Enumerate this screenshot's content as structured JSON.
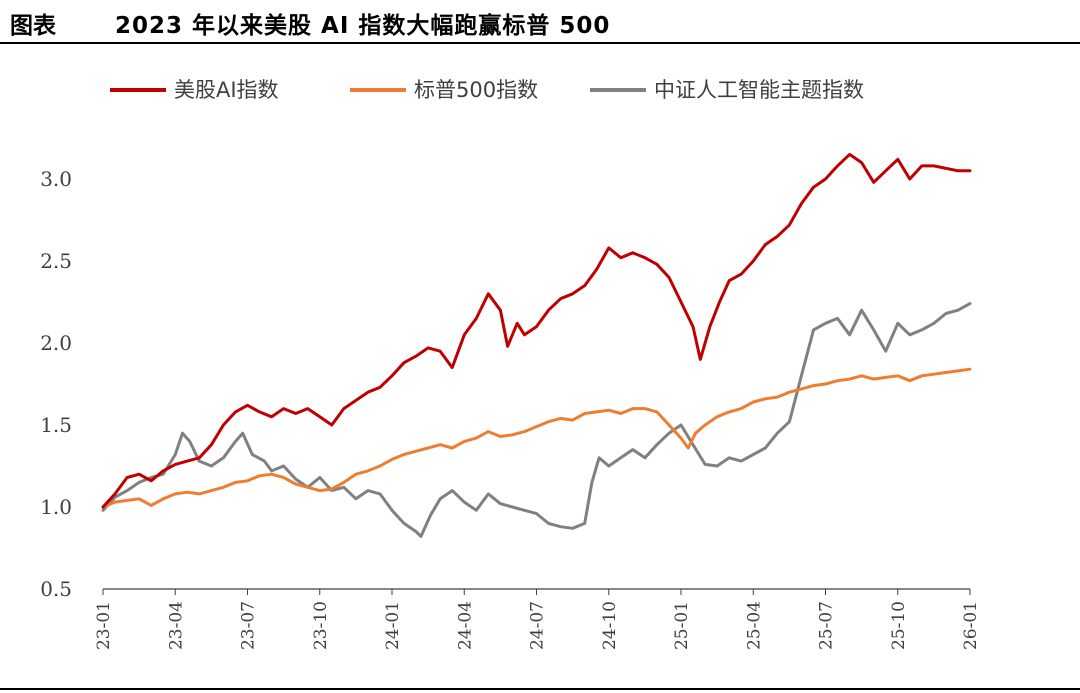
{
  "header": {
    "figure_label": "图表",
    "title": "2023 年以来美股 AI 指数大幅跑赢标普 500"
  },
  "chart_data": {
    "type": "line",
    "title": "2023 年以来美股 AI 指数大幅跑赢标普 500",
    "xlabel": "",
    "ylabel": "",
    "ylim": [
      0.5,
      3.3
    ],
    "yticks": [
      "0.5",
      "1.0",
      "1.5",
      "2.0",
      "2.5",
      "3.0"
    ],
    "xticks": [
      "23-01",
      "23-04",
      "23-07",
      "23-10",
      "24-01",
      "24-04",
      "24-07",
      "24-10",
      "25-01",
      "25-04",
      "25-07",
      "25-10",
      "26-01"
    ],
    "xrange": [
      0,
      36
    ],
    "legend_position": "top",
    "series": [
      {
        "name": "美股AI指数",
        "color": "#C00000",
        "points": [
          [
            0,
            1.0
          ],
          [
            0.5,
            1.08
          ],
          [
            1,
            1.18
          ],
          [
            1.5,
            1.2
          ],
          [
            2,
            1.16
          ],
          [
            2.5,
            1.22
          ],
          [
            3,
            1.26
          ],
          [
            3.5,
            1.28
          ],
          [
            4,
            1.3
          ],
          [
            4.5,
            1.38
          ],
          [
            5,
            1.5
          ],
          [
            5.5,
            1.58
          ],
          [
            6,
            1.62
          ],
          [
            6.5,
            1.58
          ],
          [
            7,
            1.55
          ],
          [
            7.5,
            1.6
          ],
          [
            8,
            1.57
          ],
          [
            8.5,
            1.6
          ],
          [
            9,
            1.55
          ],
          [
            9.5,
            1.5
          ],
          [
            10,
            1.6
          ],
          [
            10.5,
            1.65
          ],
          [
            11,
            1.7
          ],
          [
            11.5,
            1.73
          ],
          [
            12,
            1.8
          ],
          [
            12.5,
            1.88
          ],
          [
            13,
            1.92
          ],
          [
            13.5,
            1.97
          ],
          [
            14,
            1.95
          ],
          [
            14.5,
            1.85
          ],
          [
            15,
            2.05
          ],
          [
            15.5,
            2.15
          ],
          [
            16,
            2.3
          ],
          [
            16.5,
            2.2
          ],
          [
            16.8,
            1.98
          ],
          [
            17.2,
            2.12
          ],
          [
            17.5,
            2.05
          ],
          [
            18,
            2.1
          ],
          [
            18.5,
            2.2
          ],
          [
            19,
            2.27
          ],
          [
            19.5,
            2.3
          ],
          [
            20,
            2.35
          ],
          [
            20.5,
            2.45
          ],
          [
            21,
            2.58
          ],
          [
            21.5,
            2.52
          ],
          [
            22,
            2.55
          ],
          [
            22.5,
            2.52
          ],
          [
            23,
            2.48
          ],
          [
            23.5,
            2.4
          ],
          [
            24,
            2.25
          ],
          [
            24.5,
            2.1
          ],
          [
            24.8,
            1.9
          ],
          [
            25.2,
            2.1
          ],
          [
            25.6,
            2.25
          ],
          [
            26,
            2.38
          ],
          [
            26.5,
            2.42
          ],
          [
            27,
            2.5
          ],
          [
            27.5,
            2.6
          ],
          [
            28,
            2.65
          ],
          [
            28.5,
            2.72
          ],
          [
            29,
            2.85
          ],
          [
            29.5,
            2.95
          ],
          [
            30,
            3.0
          ],
          [
            30.5,
            3.08
          ],
          [
            31,
            3.15
          ],
          [
            31.5,
            3.1
          ],
          [
            32,
            2.98
          ],
          [
            32.5,
            3.05
          ],
          [
            33,
            3.12
          ],
          [
            33.5,
            3.0
          ],
          [
            34,
            3.08
          ],
          [
            34.5,
            3.08
          ],
          [
            35.5,
            3.05
          ],
          [
            36,
            3.05
          ]
        ]
      },
      {
        "name": "标普500指数",
        "color": "#ED7D31",
        "points": [
          [
            0,
            1.0
          ],
          [
            0.5,
            1.03
          ],
          [
            1,
            1.04
          ],
          [
            1.5,
            1.05
          ],
          [
            2,
            1.01
          ],
          [
            2.5,
            1.05
          ],
          [
            3,
            1.08
          ],
          [
            3.5,
            1.09
          ],
          [
            4,
            1.08
          ],
          [
            4.5,
            1.1
          ],
          [
            5,
            1.12
          ],
          [
            5.5,
            1.15
          ],
          [
            6,
            1.16
          ],
          [
            6.5,
            1.19
          ],
          [
            7,
            1.2
          ],
          [
            7.5,
            1.18
          ],
          [
            8,
            1.14
          ],
          [
            8.5,
            1.12
          ],
          [
            9,
            1.1
          ],
          [
            9.5,
            1.11
          ],
          [
            10,
            1.15
          ],
          [
            10.5,
            1.2
          ],
          [
            11,
            1.22
          ],
          [
            11.5,
            1.25
          ],
          [
            12,
            1.29
          ],
          [
            12.5,
            1.32
          ],
          [
            13,
            1.34
          ],
          [
            13.5,
            1.36
          ],
          [
            14,
            1.38
          ],
          [
            14.5,
            1.36
          ],
          [
            15,
            1.4
          ],
          [
            15.5,
            1.42
          ],
          [
            16,
            1.46
          ],
          [
            16.5,
            1.43
          ],
          [
            17,
            1.44
          ],
          [
            17.5,
            1.46
          ],
          [
            18,
            1.49
          ],
          [
            18.5,
            1.52
          ],
          [
            19,
            1.54
          ],
          [
            19.5,
            1.53
          ],
          [
            20,
            1.57
          ],
          [
            20.5,
            1.58
          ],
          [
            21,
            1.59
          ],
          [
            21.5,
            1.57
          ],
          [
            22,
            1.6
          ],
          [
            22.5,
            1.6
          ],
          [
            23,
            1.58
          ],
          [
            23.5,
            1.5
          ],
          [
            24,
            1.42
          ],
          [
            24.3,
            1.36
          ],
          [
            24.6,
            1.45
          ],
          [
            25,
            1.5
          ],
          [
            25.5,
            1.55
          ],
          [
            26,
            1.58
          ],
          [
            26.5,
            1.6
          ],
          [
            27,
            1.64
          ],
          [
            27.5,
            1.66
          ],
          [
            28,
            1.67
          ],
          [
            28.5,
            1.7
          ],
          [
            29,
            1.72
          ],
          [
            29.5,
            1.74
          ],
          [
            30,
            1.75
          ],
          [
            30.5,
            1.77
          ],
          [
            31,
            1.78
          ],
          [
            31.5,
            1.8
          ],
          [
            32,
            1.78
          ],
          [
            32.5,
            1.79
          ],
          [
            33,
            1.8
          ],
          [
            33.5,
            1.77
          ],
          [
            34,
            1.8
          ],
          [
            34.5,
            1.81
          ],
          [
            35,
            1.82
          ],
          [
            35.5,
            1.83
          ],
          [
            36,
            1.84
          ]
        ]
      },
      {
        "name": "中证人工智能主题指数",
        "color": "#808080",
        "points": [
          [
            0,
            0.98
          ],
          [
            0.5,
            1.06
          ],
          [
            1,
            1.1
          ],
          [
            1.5,
            1.15
          ],
          [
            2,
            1.18
          ],
          [
            2.5,
            1.2
          ],
          [
            3,
            1.32
          ],
          [
            3.3,
            1.45
          ],
          [
            3.6,
            1.4
          ],
          [
            4,
            1.28
          ],
          [
            4.5,
            1.25
          ],
          [
            5,
            1.3
          ],
          [
            5.5,
            1.4
          ],
          [
            5.8,
            1.45
          ],
          [
            6.2,
            1.32
          ],
          [
            6.7,
            1.28
          ],
          [
            7,
            1.22
          ],
          [
            7.5,
            1.25
          ],
          [
            8,
            1.17
          ],
          [
            8.5,
            1.12
          ],
          [
            9,
            1.18
          ],
          [
            9.5,
            1.1
          ],
          [
            10,
            1.12
          ],
          [
            10.5,
            1.05
          ],
          [
            11,
            1.1
          ],
          [
            11.5,
            1.08
          ],
          [
            12,
            0.98
          ],
          [
            12.5,
            0.9
          ],
          [
            13,
            0.85
          ],
          [
            13.2,
            0.82
          ],
          [
            13.6,
            0.95
          ],
          [
            14,
            1.05
          ],
          [
            14.5,
            1.1
          ],
          [
            15,
            1.03
          ],
          [
            15.5,
            0.98
          ],
          [
            16,
            1.08
          ],
          [
            16.5,
            1.02
          ],
          [
            17,
            1.0
          ],
          [
            17.5,
            0.98
          ],
          [
            18,
            0.96
          ],
          [
            18.5,
            0.9
          ],
          [
            19,
            0.88
          ],
          [
            19.5,
            0.87
          ],
          [
            20,
            0.9
          ],
          [
            20.3,
            1.15
          ],
          [
            20.6,
            1.3
          ],
          [
            21,
            1.25
          ],
          [
            21.5,
            1.3
          ],
          [
            22,
            1.35
          ],
          [
            22.5,
            1.3
          ],
          [
            23,
            1.38
          ],
          [
            23.5,
            1.45
          ],
          [
            24,
            1.5
          ],
          [
            24.5,
            1.38
          ],
          [
            25,
            1.26
          ],
          [
            25.5,
            1.25
          ],
          [
            26,
            1.3
          ],
          [
            26.5,
            1.28
          ],
          [
            27,
            1.32
          ],
          [
            27.5,
            1.36
          ],
          [
            28,
            1.45
          ],
          [
            28.5,
            1.52
          ],
          [
            29,
            1.8
          ],
          [
            29.5,
            2.08
          ],
          [
            30,
            2.12
          ],
          [
            30.5,
            2.15
          ],
          [
            31,
            2.05
          ],
          [
            31.5,
            2.2
          ],
          [
            32,
            2.08
          ],
          [
            32.5,
            1.95
          ],
          [
            33,
            2.12
          ],
          [
            33.5,
            2.05
          ],
          [
            34,
            2.08
          ],
          [
            34.5,
            2.12
          ],
          [
            35,
            2.18
          ],
          [
            35.5,
            2.2
          ],
          [
            36,
            2.24
          ]
        ]
      }
    ]
  }
}
